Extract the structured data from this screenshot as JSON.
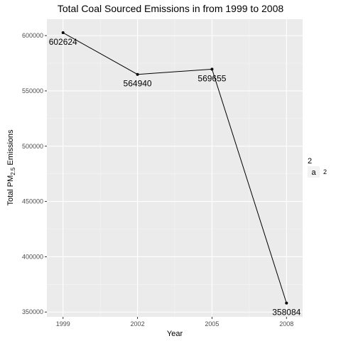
{
  "chart_data": {
    "type": "line",
    "title": "Total Coal Sourced Emissions in from 1999 to 2008",
    "xlabel": "Year",
    "ylabel": {
      "prefix": "Total PM",
      "subscript": "2.5",
      "suffix": " Emissions"
    },
    "x": [
      1999,
      2002,
      2005,
      2008
    ],
    "x_tick_labels": [
      "1999",
      "2002",
      "2005",
      "2008"
    ],
    "series": [
      {
        "values": [
          602624,
          564940,
          569655,
          358084
        ]
      }
    ],
    "data_labels": [
      "602624",
      "564940",
      "569655",
      "358084"
    ],
    "y_ticks": [
      350000,
      400000,
      450000,
      500000,
      550000,
      600000
    ],
    "y_tick_labels": [
      "350000",
      "400000",
      "450000",
      "500000",
      "550000",
      "600000"
    ],
    "xlim": [
      1998.35,
      2008.65
    ],
    "ylim": [
      345657,
      614856
    ],
    "grid": true,
    "legend": {
      "position": "right",
      "title": "2",
      "key_glyph": "a",
      "entries": [
        "2"
      ]
    },
    "colors": {
      "panel": "#ebebeb",
      "line": "#000000",
      "point": "#000000"
    }
  }
}
